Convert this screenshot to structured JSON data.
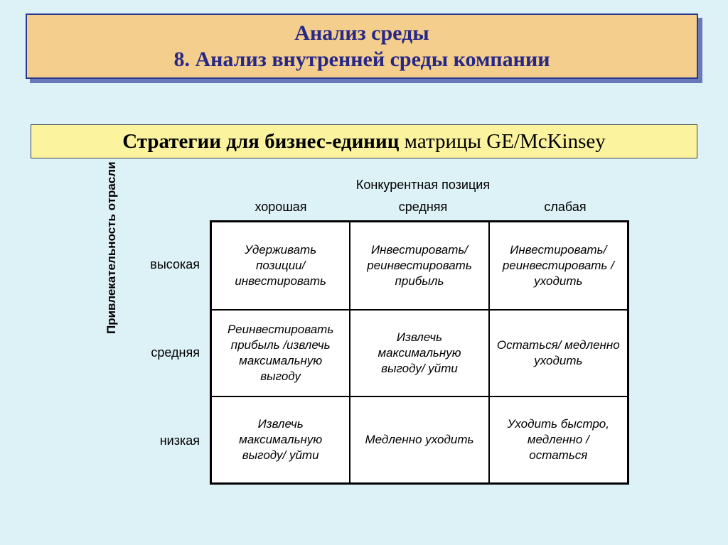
{
  "slide": {
    "background_color": "#ddf2f6",
    "title_line1": "Анализ среды",
    "title_line2": "8. Анализ внутренней среды компании",
    "title_box": {
      "bg_color": "#f4ce8c",
      "border_color": "#283890",
      "shadow_color": "#6878b8",
      "text_color": "#272787",
      "font_size": 30
    },
    "subtitle_bold": "Стратегии для бизнес-единиц",
    "subtitle_rest": " матрицы GE/McKinsey",
    "subtitle_box": {
      "bg_color": "#fbf39d",
      "border_color": "#404040",
      "font_size": 29
    }
  },
  "matrix": {
    "type": "table",
    "x_axis_title": "Конкурентная позиция",
    "y_axis_title": "Привлекательность отрасли",
    "col_headers": [
      "хорошая",
      "средняя",
      "слабая"
    ],
    "row_headers": [
      "высокая",
      "средняя",
      "низкая"
    ],
    "cells": [
      [
        "Удерживать позиции/ инвестировать",
        "Инвестировать/ реинвестировать прибыль",
        "Инвестировать/ реинвестировать / уходить"
      ],
      [
        "Реинвестировать прибыль /извлечь максимальную выгоду",
        "Извлечь максимальную выгоду/ уйти",
        "Остаться/ медленно уходить"
      ],
      [
        "Извлечь максимальную выгоду/ уйти",
        "Медленно уходить",
        "Уходить быстро, медленно / остаться"
      ]
    ],
    "border_color": "#000000",
    "border_width": 3,
    "cell_bg": "#ffffff",
    "cell_font_style": "italic",
    "cell_font_size": 17,
    "label_font_size": 18,
    "axis_title_font_size": 18
  }
}
